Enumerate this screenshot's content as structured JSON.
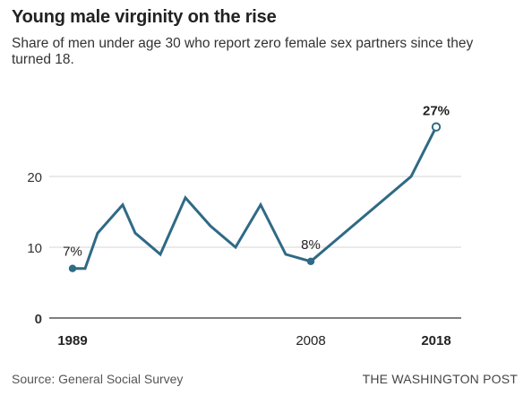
{
  "header": {
    "title": "Young male virginity on the rise",
    "subtitle": "Share of men under age 30 who report zero female sex partners since they turned 18."
  },
  "chart_data": {
    "type": "line",
    "title": "Young male virginity on the rise",
    "subtitle": "Share of men under age 30 who report zero female sex partners since they turned 18.",
    "xlabel": "",
    "ylabel": "",
    "ylim": [
      0,
      27
    ],
    "xlim": [
      1989,
      2018
    ],
    "y_ticks": [
      0,
      10,
      20
    ],
    "x_tick_labels": [
      "1989",
      "2008",
      "2018"
    ],
    "grid": true,
    "series": [
      {
        "color": "#2f6a86",
        "x": [
          1989,
          1990,
          1991,
          1993,
          1994,
          1996,
          1998,
          2000,
          2002,
          2004,
          2006,
          2008,
          2016,
          2018
        ],
        "values": [
          7,
          7,
          12,
          16,
          12,
          9,
          17,
          13,
          10,
          16,
          9,
          8,
          20,
          27
        ]
      }
    ],
    "annotations": [
      {
        "x": 1989,
        "y": 7,
        "label": "7%",
        "marker": "filled"
      },
      {
        "x": 2008,
        "y": 8,
        "label": "8%",
        "marker": "filled"
      },
      {
        "x": 2018,
        "y": 27,
        "label": "27%",
        "marker": "open"
      }
    ]
  },
  "footer": {
    "source": "Source: General Social Survey",
    "credit": "THE WASHINGTON POST"
  },
  "colors": {
    "line": "#2f6a86",
    "grid": "#d6d6d6",
    "axis": "#333333"
  }
}
